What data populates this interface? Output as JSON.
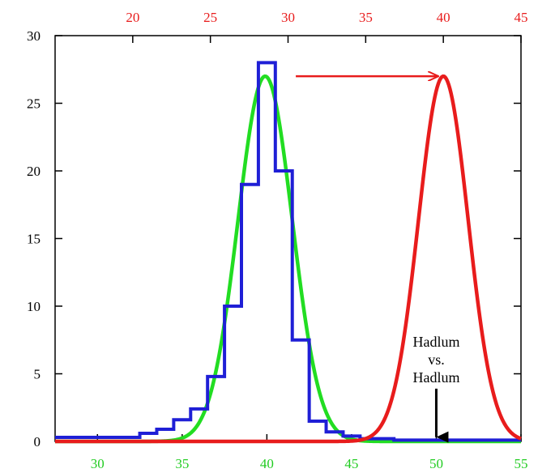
{
  "chart_data": {
    "type": "line",
    "title": "",
    "xlabel": "",
    "ylabel": "",
    "colors": {
      "histogram": "#1f1fd6",
      "gaussian_fit": "#22dd22",
      "shifted_gaussian": "#e81c1c",
      "axis": "#000000"
    },
    "axes": {
      "bottom_x": {
        "range": [
          27.5,
          55
        ],
        "ticks": [
          30,
          35,
          40,
          45,
          50,
          55
        ],
        "label_color": "#22cc22"
      },
      "top_x": {
        "range": [
          15,
          45
        ],
        "ticks": [
          20,
          25,
          30,
          35,
          40,
          45
        ],
        "label_color": "#e81c1c"
      },
      "left_y": {
        "range": [
          0,
          30
        ],
        "ticks": [
          0,
          5,
          10,
          15,
          20,
          25,
          30
        ]
      }
    },
    "grid": false,
    "series": [
      {
        "kind": "histogram-step",
        "axis": "bottom",
        "color": "#1f1fd6",
        "bin_edges": [
          27.5,
          32.5,
          33.5,
          34.5,
          35.5,
          36.5,
          37.5,
          38.5,
          39.5,
          40.5,
          41.5,
          42.5,
          43.5,
          44.5,
          45.5,
          47.5,
          55
        ],
        "values": [
          0.3,
          0.6,
          0.9,
          1.6,
          2.4,
          4.8,
          10.0,
          19.0,
          28.0,
          20.0,
          7.5,
          1.5,
          0.7,
          0.4,
          0.2,
          0.1
        ]
      },
      {
        "kind": "gaussian",
        "axis": "bottom",
        "color": "#22dd22",
        "amplitude": 27,
        "mean": 39.9,
        "sigma": 1.6
      },
      {
        "kind": "gaussian",
        "axis": "top",
        "color": "#e81c1c",
        "amplitude": 27,
        "mean": 40,
        "sigma": 1.6
      }
    ],
    "annotations": {
      "shift_arrow": {
        "from": [
          30.5,
          27
        ],
        "to": [
          40,
          27
        ],
        "color": "#e81c1c"
      },
      "marker_arrow": {
        "x": 50,
        "y_from": 3.9,
        "y_to": 0.2,
        "color": "#000000"
      },
      "label_lines": [
        "Hadlum",
        "vs.",
        "Hadlum"
      ]
    }
  }
}
